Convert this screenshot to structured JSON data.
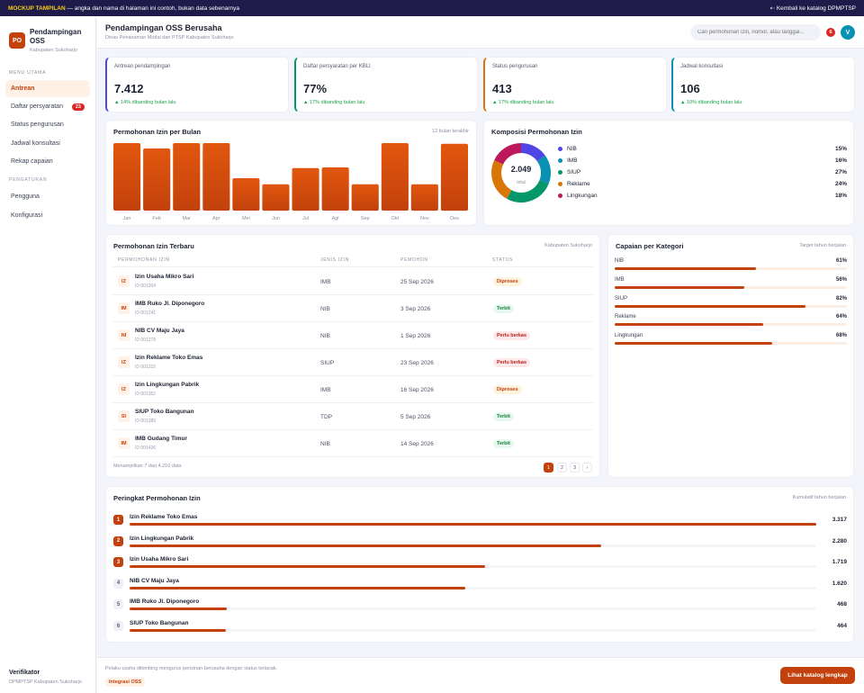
{
  "banner": {
    "tag": "MOCKUP TAMPILAN",
    "text": "— angka dan nama di halaman ini contoh, bukan data sebenarnya",
    "back": "⇠ Kembali ke katalog DPMPTSP"
  },
  "brand": {
    "initials": "PO",
    "name": "Pendampingan OSS",
    "sub": "Kabupaten Sukoharjo"
  },
  "sidebar": {
    "section_main": "MENU UTAMA",
    "items": [
      {
        "label": "Antrean"
      },
      {
        "label": "Daftar persyaratan",
        "badge": "23"
      },
      {
        "label": "Status pengurusan"
      },
      {
        "label": "Jadwal konsultasi"
      },
      {
        "label": "Rekap capaian"
      }
    ],
    "section_settings": "PENGATURAN",
    "settings": [
      {
        "label": "Pengguna"
      },
      {
        "label": "Konfigurasi"
      }
    ],
    "footer": {
      "role": "Verifikator",
      "org": "DPMPTSP Kabupaten Sukoharjo"
    }
  },
  "header": {
    "title": "Pendampingan OSS Berusaha",
    "subtitle": "Dinas Penanaman Modal dan PTSP Kabupaten Sukoharjo",
    "search_placeholder": "Cari permohonan izin, nomor, atau tanggal...",
    "notif_count": "6",
    "avatar": "V"
  },
  "kpis": [
    {
      "label": "Antrean pendampingan",
      "value": "7.412",
      "trend": "▲ 14% dibanding bulan lalu",
      "color": "#4f46e5"
    },
    {
      "label": "Daftar persyaratan per KBLI",
      "value": "77%",
      "trend": "▲ 17% dibanding bulan lalu",
      "color": "#059669"
    },
    {
      "label": "Status pengurusan",
      "value": "413",
      "trend": "▲ 17% dibanding bulan lalu",
      "color": "#d97706"
    },
    {
      "label": "Jadwal konsultasi",
      "value": "106",
      "trend": "▲ 10% dibanding bulan lalu",
      "color": "#0891b2"
    }
  ],
  "monthly": {
    "title": "Permohonan Izin per Bulan",
    "note": "12 bulan terakhir"
  },
  "chart_data": [
    {
      "type": "bar",
      "title": "Permohonan Izin per Bulan",
      "categories": [
        "Jan",
        "Feb",
        "Mar",
        "Apr",
        "Mei",
        "Jun",
        "Jul",
        "Agt",
        "Sep",
        "Okt",
        "Nov",
        "Des"
      ],
      "values": [
        100,
        92,
        100,
        100,
        48,
        39,
        63,
        64,
        39,
        100,
        39,
        99
      ],
      "ylim": [
        0,
        100
      ],
      "grid": false,
      "color": "#e2570e"
    },
    {
      "type": "pie",
      "title": "Komposisi Permohonan Izin",
      "center_value": "2.049",
      "center_label": "total",
      "labels": [
        "NIB",
        "IMB",
        "SIUP",
        "Reklame",
        "Lingkungan"
      ],
      "values": [
        15,
        16,
        27,
        24,
        18
      ],
      "colors": [
        "#4f46e5",
        "#0891b2",
        "#059669",
        "#d97706",
        "#be185d"
      ],
      "legend": "right"
    }
  ],
  "composition": {
    "title": "Komposisi Permohonan Izin"
  },
  "table": {
    "title": "Permohonan Izin Terbaru",
    "note": "Kabupaten Sukoharjo",
    "headers": [
      "PERMOHONAN IZIN",
      "JENIS IZIN",
      "PEMOHON",
      "STATUS"
    ],
    "rows": [
      {
        "ini": "IZ",
        "name": "Izin Usaha Mikro Sari",
        "id": "ID 001204",
        "jenis": "IMB",
        "date": "25 Sep 2026",
        "status": "Diproses"
      },
      {
        "ini": "IM",
        "name": "IMB Ruko Jl. Diponegoro",
        "id": "ID 001241",
        "jenis": "NIB",
        "date": "3 Sep 2026",
        "status": "Terbit"
      },
      {
        "ini": "NI",
        "name": "NIB CV Maju Jaya",
        "id": "ID 001278",
        "jenis": "NIB",
        "date": "1 Sep 2026",
        "status": "Perlu berkas"
      },
      {
        "ini": "IZ",
        "name": "Izin Reklame Toko Emas",
        "id": "ID 001315",
        "jenis": "SIUP",
        "date": "23 Sep 2026",
        "status": "Perlu berkas"
      },
      {
        "ini": "IZ",
        "name": "Izin Lingkungan Pabrik",
        "id": "ID 001352",
        "jenis": "IMB",
        "date": "16 Sep 2026",
        "status": "Diproses"
      },
      {
        "ini": "SI",
        "name": "SIUP Toko Bangunan",
        "id": "ID 001389",
        "jenis": "TDP",
        "date": "5 Sep 2026",
        "status": "Terbit"
      },
      {
        "ini": "IM",
        "name": "IMB Gudang Timur",
        "id": "ID 001426",
        "jenis": "NIB",
        "date": "14 Sep 2026",
        "status": "Terbit"
      }
    ],
    "summary": "Menampilkan 7 dari 4.210 data",
    "pages": [
      "1",
      "2",
      "3",
      "›"
    ]
  },
  "capaian": {
    "title": "Capaian per Kategori",
    "note": "Target tahun berjalan",
    "items": [
      {
        "name": "NIB",
        "pct": "61%",
        "value": 61
      },
      {
        "name": "IMB",
        "pct": "56%",
        "value": 56
      },
      {
        "name": "SIUP",
        "pct": "82%",
        "value": 82
      },
      {
        "name": "Reklame",
        "pct": "64%",
        "value": 64
      },
      {
        "name": "Lingkungan",
        "pct": "68%",
        "value": 68
      }
    ]
  },
  "ranking": {
    "title": "Peringkat Permohonan Izin",
    "note": "Kumulatif tahun berjalan",
    "max": 3317,
    "items": [
      {
        "rank": "1",
        "name": "Izin Reklame Toko Emas",
        "value": 3317,
        "label": "3.317"
      },
      {
        "rank": "2",
        "name": "Izin Lingkungan Pabrik",
        "value": 2280,
        "label": "2.280"
      },
      {
        "rank": "3",
        "name": "Izin Usaha Mikro Sari",
        "value": 1719,
        "label": "1.719"
      },
      {
        "rank": "4",
        "name": "NIB CV Maju Jaya",
        "value": 1620,
        "label": "1.620"
      },
      {
        "rank": "5",
        "name": "IMB Ruko Jl. Diponegoro",
        "value": 468,
        "label": "468"
      },
      {
        "rank": "6",
        "name": "SIUP Toko Bangunan",
        "value": 464,
        "label": "464"
      }
    ]
  },
  "footer": {
    "text": "Pelaku usaha dibimbing mengurus perizinan berusaha dengan status terlacak.",
    "tag": "Integrasi OSS",
    "button": "Lihat katalog lengkap"
  }
}
